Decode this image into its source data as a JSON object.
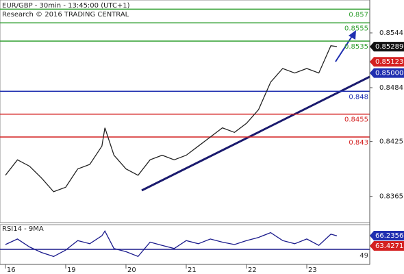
{
  "chart_data": [
    {
      "type": "line",
      "title": "EUR/GBP - 30min - 13:45:00 (UTC+1)",
      "subtitle": "Research © 2016 TRADING CENTRAL",
      "x": [
        0,
        0.2,
        0.4,
        0.6,
        0.8,
        1.0,
        1.2,
        1.4,
        1.6,
        1.65,
        1.8,
        2.0,
        2.2,
        2.4,
        2.6,
        2.8,
        3.0,
        3.2,
        3.4,
        3.6,
        3.8,
        4.0,
        4.2,
        4.4,
        4.6,
        4.8,
        5.0,
        5.2,
        5.4,
        5.5
      ],
      "values": [
        0.8388,
        0.8405,
        0.8398,
        0.8385,
        0.837,
        0.8375,
        0.8395,
        0.84,
        0.842,
        0.844,
        0.841,
        0.8395,
        0.8388,
        0.8405,
        0.841,
        0.8405,
        0.841,
        0.842,
        0.843,
        0.844,
        0.8435,
        0.8445,
        0.846,
        0.849,
        0.8505,
        0.85,
        0.8505,
        0.85,
        0.853,
        0.8529
      ],
      "color": "#222222",
      "xlim": [
        -0.09,
        6.045
      ],
      "xticks": [
        {
          "value": 0,
          "label": "16"
        },
        {
          "value": 1,
          "label": "19"
        },
        {
          "value": 2,
          "label": "20"
        },
        {
          "value": 3,
          "label": "21"
        },
        {
          "value": 4,
          "label": "22"
        },
        {
          "value": 5,
          "label": "23"
        }
      ],
      "ylim": [
        0.83362,
        0.858
      ],
      "yticks": [
        0.8365,
        0.8425,
        0.8484,
        0.8544
      ],
      "levels": [
        {
          "value": 0.857,
          "color": "#2e9e2e"
        },
        {
          "value": 0.8555,
          "color": "#2e9e2e"
        },
        {
          "value": 0.8535,
          "color": "#2e9e2e"
        },
        {
          "value": 0.848,
          "color": "#1f2fb0"
        },
        {
          "value": 0.8455,
          "color": "#d42020"
        },
        {
          "value": 0.843,
          "color": "#d42020"
        }
      ],
      "markers": [
        {
          "value": 0.85289,
          "color": "#111111"
        },
        {
          "value": 0.85123,
          "color": "#d42020"
        },
        {
          "value": {
            "value": 0.85,
            "label": "0.85000"
          },
          "color": "#1f2fb0"
        }
      ]
    },
    {
      "type": "line",
      "title": "RSI14 - 9MA",
      "x": [
        0,
        0.2,
        0.4,
        0.6,
        0.8,
        1.0,
        1.2,
        1.4,
        1.6,
        1.65,
        1.8,
        2.0,
        2.2,
        2.4,
        2.6,
        2.8,
        3.0,
        3.2,
        3.4,
        3.6,
        3.8,
        4.0,
        4.2,
        4.4,
        4.6,
        4.8,
        5.0,
        5.2,
        5.4,
        5.5
      ],
      "values": [
        55,
        62,
        52,
        45,
        40,
        48,
        60,
        56,
        66,
        72,
        50,
        46,
        40,
        58,
        54,
        50,
        60,
        56,
        62,
        58,
        55,
        60,
        64,
        70,
        60,
        56,
        62,
        54,
        68,
        66
      ],
      "color": "#1a1a8c",
      "ylim": [
        30,
        80
      ],
      "levels": [
        {
          "value": 49,
          "color": "#1a1a8c"
        }
      ],
      "markers": [
        {
          "value": 66.2356,
          "color": "#1f2fb0"
        },
        {
          "value": 63.4271,
          "color": "#d42020"
        }
      ]
    }
  ]
}
